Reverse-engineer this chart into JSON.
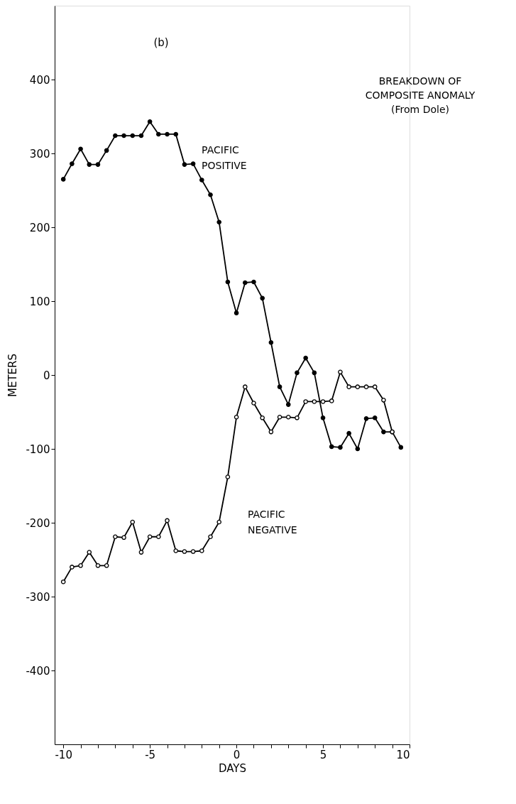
{
  "chart_data": {
    "type": "line",
    "title": "BREAKDOWN OF\nCOMPOSITE ANOMALY\n(From Dole)",
    "annotations": [
      "(b)"
    ],
    "xlabel": "DAYS",
    "ylabel": "METERS",
    "xlim": [
      -10.5,
      10
    ],
    "ylim": [
      -500,
      500
    ],
    "xticks": [
      -10,
      {
        "value": -9,
        "label": null
      },
      {
        "value": -8,
        "label": null
      },
      {
        "value": -7,
        "label": null
      },
      {
        "value": -6,
        "label": null
      },
      -5,
      {
        "value": -4,
        "label": null
      },
      {
        "value": -3,
        "label": null
      },
      {
        "value": -2,
        "label": null
      },
      {
        "value": -1,
        "label": null
      },
      0,
      {
        "value": 1,
        "label": null
      },
      {
        "value": 2,
        "label": null
      },
      {
        "value": 3,
        "label": null
      },
      {
        "value": 4,
        "label": null
      },
      5,
      {
        "value": 6,
        "label": null
      },
      {
        "value": 7,
        "label": null
      },
      {
        "value": 8,
        "label": null
      },
      {
        "value": 9,
        "label": null
      },
      10
    ],
    "yticks": [
      -400,
      -300,
      -200,
      -100,
      0,
      100,
      200,
      300,
      400
    ],
    "grid": false,
    "marker": "circle",
    "line_style": "solid",
    "series": [
      {
        "name": "PACIFIC POSITIVE",
        "color": "#000000",
        "x": [
          -10,
          -9.5,
          -9,
          -8.5,
          -8,
          -7.5,
          -7,
          -6.5,
          -6,
          -5.5,
          -5,
          -4.5,
          -4,
          -3.5,
          -3,
          -2.5,
          -2,
          -1.5,
          -1,
          -0.5,
          0,
          0.5,
          1,
          1.5,
          2,
          2.5,
          3,
          3.5,
          4,
          4.5,
          5,
          5.5,
          6,
          6.5,
          7,
          7.5,
          8,
          8.5,
          9,
          9.5
        ],
        "values": [
          265,
          286,
          306,
          285,
          285,
          304,
          324,
          324,
          324,
          324,
          343,
          326,
          326,
          326,
          285,
          286,
          264,
          244,
          207,
          126,
          84,
          125,
          126,
          104,
          44,
          -16,
          -40,
          3,
          23,
          3,
          -58,
          -97,
          -98,
          -79,
          -100,
          -59,
          -58,
          -77,
          -77,
          -98
        ]
      },
      {
        "name": "PACIFIC NEGATIVE",
        "color": "#000000",
        "x": [
          -10,
          -9.5,
          -9,
          -8.5,
          -8,
          -7.5,
          -7,
          -6.5,
          -6,
          -5.5,
          -5,
          -4.5,
          -4,
          -3.5,
          -3,
          -2.5,
          -2,
          -1.5,
          -1,
          -0.5,
          0,
          0.5,
          1,
          1.5,
          2,
          2.5,
          3,
          3.5,
          4,
          4.5,
          5,
          5.5,
          6,
          6.5,
          7,
          7.5,
          8,
          8.5,
          9
        ],
        "values": [
          -280,
          -260,
          -258,
          -240,
          -258,
          -258,
          -219,
          -220,
          -199,
          -240,
          -219,
          -219,
          -197,
          -238,
          -239,
          -239,
          -238,
          -219,
          -199,
          -138,
          -57,
          -16,
          -38,
          -58,
          -77,
          -57,
          -57,
          -58,
          -36,
          -36,
          -36,
          -35,
          4,
          -16,
          -16,
          -16,
          -16,
          -34,
          -77
        ]
      }
    ]
  }
}
